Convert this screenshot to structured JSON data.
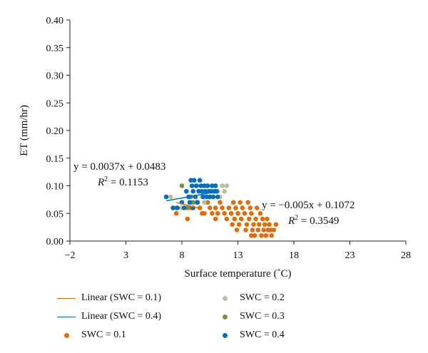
{
  "chart_data": {
    "type": "scatter",
    "xlabel": "Surface temperature (˚C)",
    "ylabel": "ET (mm/hr)",
    "xlim": [
      -2,
      28
    ],
    "ylim": [
      0,
      0.4
    ],
    "xticks": [
      -2,
      3,
      8,
      13,
      18,
      23,
      28
    ],
    "xtick_labels": [
      "−2",
      "3",
      "8",
      "13",
      "18",
      "23",
      "28"
    ],
    "yticks": [
      0,
      0.05,
      0.1,
      0.15,
      0.2,
      0.25,
      0.3,
      0.35,
      0.4
    ],
    "ytick_labels": [
      "0.00",
      "0.05",
      "0.10",
      "0.15",
      "0.20",
      "0.25",
      "0.30",
      "0.35",
      "0.40"
    ],
    "grid": false,
    "legend_position": "bottom",
    "series": [
      {
        "name": "SWC = 0.1",
        "color": "#e36c0a",
        "points": [
          [
            7.5,
            0.05
          ],
          [
            8.5,
            0.04
          ],
          [
            8.8,
            0.06
          ],
          [
            9.3,
            0.07
          ],
          [
            9.6,
            0.06
          ],
          [
            9.8,
            0.05
          ],
          [
            10.3,
            0.07
          ],
          [
            10.5,
            0.06
          ],
          [
            10.7,
            0.05
          ],
          [
            11.0,
            0.06
          ],
          [
            11.2,
            0.05
          ],
          [
            11.4,
            0.07
          ],
          [
            11.6,
            0.06
          ],
          [
            11.8,
            0.05
          ],
          [
            12.0,
            0.04
          ],
          [
            12.2,
            0.06
          ],
          [
            12.4,
            0.05
          ],
          [
            12.5,
            0.03
          ],
          [
            12.6,
            0.07
          ],
          [
            12.7,
            0.04
          ],
          [
            12.8,
            0.06
          ],
          [
            13.0,
            0.05
          ],
          [
            13.1,
            0.03
          ],
          [
            13.2,
            0.07
          ],
          [
            13.3,
            0.04
          ],
          [
            13.4,
            0.06
          ],
          [
            13.6,
            0.05
          ],
          [
            13.7,
            0.02
          ],
          [
            13.8,
            0.03
          ],
          [
            13.9,
            0.07
          ],
          [
            14.0,
            0.04
          ],
          [
            14.1,
            0.06
          ],
          [
            14.2,
            0.05
          ],
          [
            14.3,
            0.02
          ],
          [
            14.4,
            0.03
          ],
          [
            14.5,
            0.01
          ],
          [
            14.6,
            0.04
          ],
          [
            14.7,
            0.06
          ],
          [
            14.8,
            0.02
          ],
          [
            14.9,
            0.03
          ],
          [
            15.0,
            0.05
          ],
          [
            15.1,
            0.01
          ],
          [
            15.2,
            0.04
          ],
          [
            15.3,
            0.02
          ],
          [
            15.4,
            0.03
          ],
          [
            15.5,
            0.01
          ],
          [
            15.6,
            0.04
          ],
          [
            15.7,
            0.02
          ],
          [
            15.8,
            0.03
          ],
          [
            15.9,
            0.02
          ],
          [
            16.0,
            0.01
          ],
          [
            16.2,
            0.02
          ],
          [
            16.4,
            0.03
          ],
          [
            12.9,
            0.02
          ],
          [
            14.2,
            0.01
          ],
          [
            10.0,
            0.05
          ],
          [
            11.0,
            0.04
          ]
        ]
      },
      {
        "name": "SWC = 0.2",
        "color": "#c4bc96",
        "points": [
          [
            7.0,
            0.08
          ],
          [
            8.0,
            0.06
          ],
          [
            8.8,
            0.07
          ],
          [
            9.5,
            0.09
          ],
          [
            9.8,
            0.08
          ],
          [
            10.2,
            0.1
          ],
          [
            10.5,
            0.08
          ],
          [
            10.8,
            0.09
          ],
          [
            11.0,
            0.1
          ],
          [
            11.2,
            0.09
          ],
          [
            11.4,
            0.08
          ],
          [
            11.6,
            0.1
          ],
          [
            11.8,
            0.09
          ],
          [
            12.0,
            0.1
          ],
          [
            10.0,
            0.07
          ],
          [
            9.2,
            0.1
          ]
        ]
      },
      {
        "name": "SWC = 0.3",
        "color": "#77933c",
        "points": [
          [
            8.0,
            0.1
          ],
          [
            8.5,
            0.06
          ],
          [
            9.0,
            0.07
          ],
          [
            7.5,
            0.06
          ],
          [
            8.8,
            0.08
          ]
        ]
      },
      {
        "name": "SWC = 0.4",
        "color": "#0070c0",
        "points": [
          [
            6.6,
            0.08
          ],
          [
            7.2,
            0.06
          ],
          [
            7.6,
            0.06
          ],
          [
            8.0,
            0.07
          ],
          [
            8.4,
            0.09
          ],
          [
            8.6,
            0.08
          ],
          [
            8.7,
            0.07
          ],
          [
            8.8,
            0.11
          ],
          [
            8.9,
            0.1
          ],
          [
            9.0,
            0.09
          ],
          [
            9.1,
            0.11
          ],
          [
            9.2,
            0.08
          ],
          [
            9.3,
            0.1
          ],
          [
            9.4,
            0.07
          ],
          [
            9.5,
            0.09
          ],
          [
            9.6,
            0.11
          ],
          [
            9.7,
            0.1
          ],
          [
            9.8,
            0.09
          ],
          [
            9.9,
            0.08
          ],
          [
            10.0,
            0.1
          ],
          [
            10.1,
            0.09
          ],
          [
            10.2,
            0.08
          ],
          [
            10.3,
            0.1
          ],
          [
            10.4,
            0.09
          ],
          [
            10.5,
            0.08
          ],
          [
            10.6,
            0.09
          ],
          [
            10.7,
            0.1
          ],
          [
            10.8,
            0.08
          ],
          [
            10.9,
            0.09
          ],
          [
            11.0,
            0.1
          ],
          [
            11.1,
            0.09
          ],
          [
            11.2,
            0.08
          ],
          [
            9.0,
            0.06
          ],
          [
            8.2,
            0.06
          ]
        ]
      }
    ],
    "trendlines": [
      {
        "name": "Linear (SWC = 0.1)",
        "color": "#e36c0a",
        "slope": -0.005,
        "intercept": 0.1072,
        "x_range": [
          7.5,
          9.5
        ],
        "equation": "y = −0.005x + 0.1072",
        "r2_label": "R",
        "r2_value": "= 0.3549"
      },
      {
        "name": "Linear (SWC = 0.4)",
        "color": "#0070c0",
        "slope": 0.0037,
        "intercept": 0.0483,
        "x_range": [
          6.6,
          11.2
        ],
        "equation": "y = 0.0037x + 0.0483",
        "r2_label": "R",
        "r2_value": "= 0.1153"
      }
    ]
  },
  "legend": {
    "items": [
      {
        "label": "Linear (SWC = 0.1)",
        "kind": "line",
        "color": "#e36c0a"
      },
      {
        "label": "SWC = 0.2",
        "kind": "dot",
        "color": "#c4bc96"
      },
      {
        "label": "Linear (SWC = 0.4)",
        "kind": "line",
        "color": "#0070c0"
      },
      {
        "label": "SWC = 0.3",
        "kind": "dot",
        "color": "#77933c"
      },
      {
        "label": "SWC = 0.1",
        "kind": "dot",
        "color": "#e36c0a"
      },
      {
        "label": "SWC = 0.4",
        "kind": "dot",
        "color": "#0070c0"
      }
    ]
  }
}
